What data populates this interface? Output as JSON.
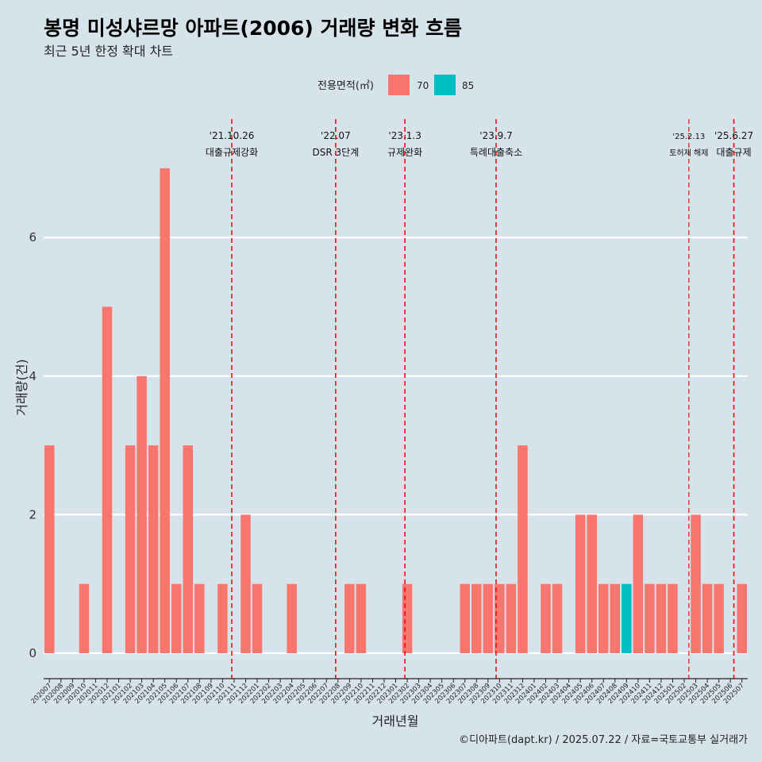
{
  "title": "봉명 미성샤르망 아파트(2006) 거래량 변화 흐름",
  "subtitle": "최근 5년 한정 확대 차트",
  "caption": "©디아파트(dapt.kr) / 2025.07.22 / 자료=국토교통부 실거래가",
  "colors": {
    "background": "#d7e3ea",
    "area70": "#f8766d",
    "area85": "#00bfc4",
    "event_line": "#ee1111",
    "grid": "#ffffff"
  },
  "chart_data": {
    "type": "bar",
    "stacked": true,
    "xlabel": "거래년월",
    "ylabel": "거래량(건)",
    "ylim": [
      0,
      7
    ],
    "yticks": [
      0,
      2,
      4,
      6
    ],
    "grid": true,
    "legend": {
      "title": "전용면적(㎡)",
      "position": "top",
      "entries": [
        "70",
        "85"
      ]
    },
    "categories": [
      "202007",
      "202008",
      "202009",
      "202010",
      "202011",
      "202012",
      "202101",
      "202102",
      "202103",
      "202104",
      "202105",
      "202106",
      "202107",
      "202108",
      "202109",
      "202110",
      "202111",
      "202112",
      "202201",
      "202202",
      "202203",
      "202204",
      "202205",
      "202206",
      "202207",
      "202208",
      "202209",
      "202210",
      "202211",
      "202212",
      "202301",
      "202302",
      "202303",
      "202304",
      "202305",
      "202306",
      "202307",
      "202308",
      "202309",
      "202310",
      "202311",
      "202312",
      "202401",
      "202402",
      "202403",
      "202404",
      "202405",
      "202406",
      "202407",
      "202408",
      "202409",
      "202410",
      "202411",
      "202412",
      "202501",
      "202502",
      "202503",
      "202504",
      "202505",
      "202506",
      "202507"
    ],
    "series": [
      {
        "name": "70",
        "color": "#f8766d",
        "values": [
          3,
          0,
          0,
          1,
          0,
          5,
          0,
          3,
          4,
          3,
          7,
          1,
          3,
          1,
          0,
          1,
          0,
          2,
          1,
          0,
          0,
          1,
          0,
          0,
          0,
          0,
          1,
          1,
          0,
          0,
          0,
          1,
          0,
          0,
          0,
          0,
          1,
          1,
          1,
          1,
          1,
          3,
          0,
          1,
          1,
          0,
          2,
          2,
          1,
          1,
          0,
          2,
          1,
          1,
          1,
          0,
          2,
          1,
          1,
          0,
          1
        ]
      },
      {
        "name": "85",
        "color": "#00bfc4",
        "values": [
          0,
          0,
          0,
          0,
          0,
          0,
          0,
          0,
          0,
          0,
          0,
          0,
          0,
          0,
          0,
          0,
          0,
          0,
          0,
          0,
          0,
          0,
          0,
          0,
          0,
          0,
          0,
          0,
          0,
          0,
          0,
          0,
          0,
          0,
          0,
          0,
          0,
          0,
          0,
          0,
          0,
          0,
          0,
          0,
          0,
          0,
          0,
          0,
          0,
          0,
          1,
          0,
          0,
          0,
          0,
          0,
          0,
          0,
          0,
          0,
          0
        ]
      }
    ],
    "events": [
      {
        "date": "'21.10.26",
        "label": "대출규제강화",
        "category_index": 15.8
      },
      {
        "date": "'22.07",
        "label": "DSR 3단계",
        "category_index": 24.8
      },
      {
        "date": "'23.1.3",
        "label": "규제완화",
        "category_index": 30.8
      },
      {
        "date": "'23.9.7",
        "label": "특례대출축소",
        "category_index": 38.7
      },
      {
        "date": "'25.2.13",
        "label": "토허제 해제",
        "category_index": 55.4,
        "small": true
      },
      {
        "date": "'25.6.27",
        "label": "대출규제",
        "category_index": 59.3
      }
    ]
  }
}
